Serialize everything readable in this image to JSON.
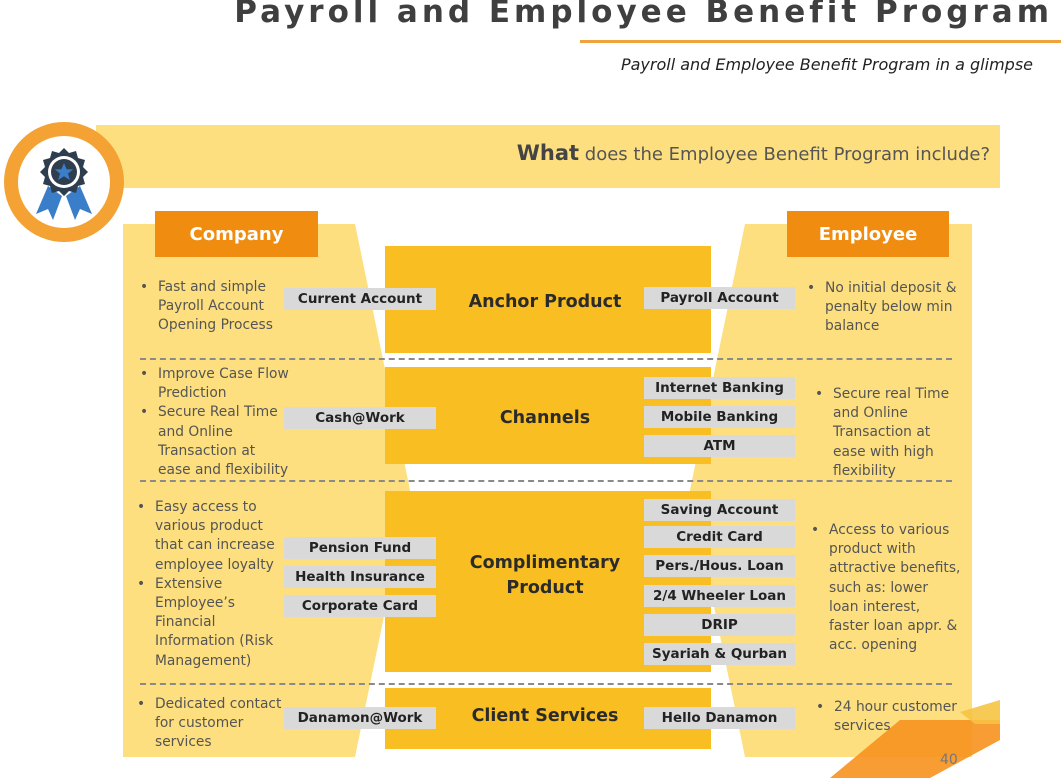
{
  "header": {
    "title": "Payroll and Employee Benefit Program",
    "subtitle": "Payroll and Employee Benefit Program in a glimpse"
  },
  "banner": {
    "bold": "What",
    "rest": "does the Employee Benefit Program include?",
    "icon": "award-ribbon-icon"
  },
  "columns": {
    "company": "Company",
    "employee": "Employee"
  },
  "rows": {
    "anchor": {
      "label": "Anchor Product",
      "company_points": [
        "Fast and simple Payroll Account Opening Process"
      ],
      "company_items": [
        "Current Account"
      ],
      "employee_items": [
        "Payroll Account"
      ],
      "employee_points": [
        "No initial deposit & penalty below min balance"
      ]
    },
    "channels": {
      "label": "Channels",
      "company_points": [
        "Improve Case Flow Prediction",
        "Secure Real Time and Online Transaction at ease and flexibility"
      ],
      "company_items": [
        "Cash@Work"
      ],
      "employee_items": [
        "Internet Banking",
        "Mobile Banking",
        "ATM"
      ],
      "employee_points": [
        "Secure real Time and Online Transaction at ease with high flexibility"
      ]
    },
    "complimentary": {
      "label_line1": "Complimentary",
      "label_line2": "Product",
      "company_points": [
        "Easy access to various product that can increase employee loyalty",
        "Extensive Employee’s Financial Information (Risk Management)"
      ],
      "company_items": [
        "Pension Fund",
        "Health Insurance",
        "Corporate Card"
      ],
      "employee_items": [
        "Saving Account",
        "Credit Card",
        "Pers./Hous. Loan",
        "2/4 Wheeler Loan",
        "DRIP",
        "Syariah & Qurban"
      ],
      "employee_points": [
        "Access to various product with attractive benefits, such as: lower loan interest, faster loan appr. & acc. opening"
      ]
    },
    "client": {
      "label": "Client Services",
      "company_points": [
        "Dedicated contact for customer services"
      ],
      "company_items": [
        "Danamon@Work"
      ],
      "employee_items": [
        "Hello Danamon"
      ],
      "employee_points": [
        "24 hour customer services"
      ]
    }
  },
  "page_number": "40",
  "colors": {
    "orange": "#f08c10",
    "light_yellow": "#fddf7f",
    "gold": "#f9bf22",
    "pill_gray": "#d9d9d9",
    "badge_blue": "#3a7dc9"
  }
}
